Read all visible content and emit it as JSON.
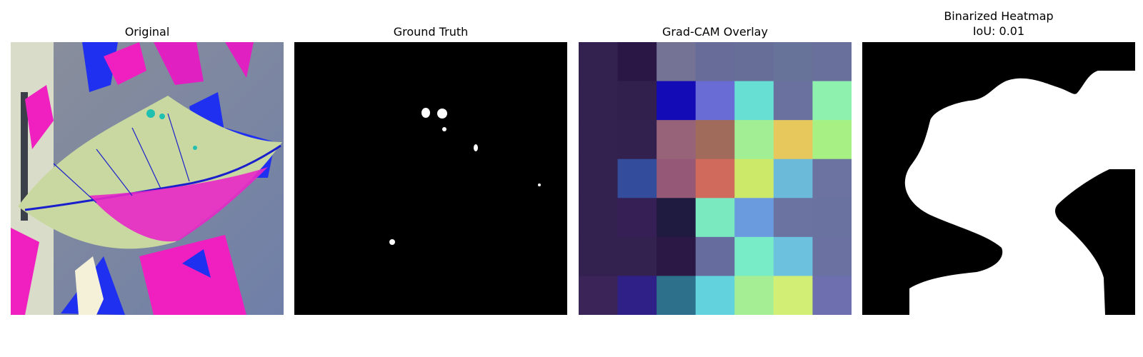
{
  "panels": [
    {
      "title": "Original"
    },
    {
      "title": "Ground Truth"
    },
    {
      "title": "Grad-CAM Overlay"
    },
    {
      "title": "Binarized Heatmap",
      "subtitle": "IoU: 0.01"
    }
  ],
  "gradcam_colors": [
    [
      "#33214f",
      "#2a1745",
      "#747295",
      "#676d98",
      "#676e98",
      "#687399",
      "#6a709c"
    ],
    [
      "#33214f",
      "#31204d",
      "#130bb5",
      "#6a6cd6",
      "#68dfd3",
      "#6b719f",
      "#8ef2ae"
    ],
    [
      "#33214f",
      "#32214f",
      "#976379",
      "#a16b5c",
      "#a2ee94",
      "#e6c85d",
      "#a7f184"
    ],
    [
      "#33214f",
      "#344c9c",
      "#955876",
      "#d06a5c",
      "#cde96a",
      "#6bbada",
      "#6c73a0"
    ],
    [
      "#33214f",
      "#361f55",
      "#1f1a3f",
      "#7be9c0",
      "#6a9bdf",
      "#6b73a0",
      "#6a73a0"
    ],
    [
      "#33214f",
      "#33224f",
      "#2b1845",
      "#666c9d",
      "#78ecc7",
      "#6bc1de",
      "#6b72a1"
    ],
    [
      "#3a2458",
      "#2f2088",
      "#2d708c",
      "#62d3dc",
      "#a6ee94",
      "#d2ee74",
      "#6d6fae"
    ]
  ]
}
